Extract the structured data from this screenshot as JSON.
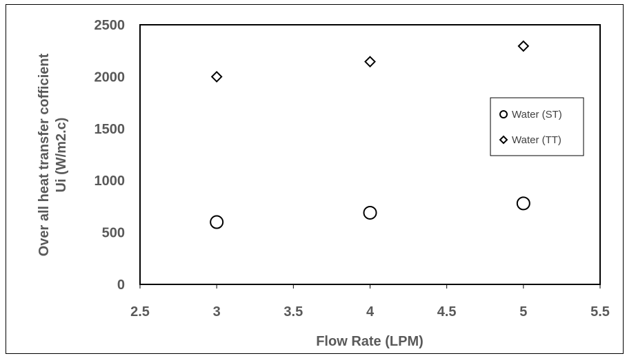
{
  "chart_data": {
    "type": "scatter",
    "title": "",
    "xlabel": "Flow Rate (LPM)",
    "ylabel_lines": [
      "Over all heat transfer cofficient",
      "Ui (W/m2.c)"
    ],
    "xlim": [
      2.5,
      5.5
    ],
    "ylim": [
      0,
      2500
    ],
    "x_ticks": [
      "2.5",
      "3",
      "3.5",
      "4",
      "4.5",
      "5",
      "5.5"
    ],
    "y_ticks": [
      "0",
      "500",
      "1000",
      "1500",
      "2000",
      "2500"
    ],
    "grid": false,
    "legend_position": "right",
    "series": [
      {
        "name": "Water (ST)",
        "marker": "circle",
        "x": [
          3,
          4,
          5
        ],
        "y": [
          600,
          690,
          780
        ]
      },
      {
        "name": "Water (TT)",
        "marker": "diamond",
        "x": [
          3,
          4,
          5
        ],
        "y": [
          2000,
          2145,
          2295
        ]
      }
    ]
  }
}
